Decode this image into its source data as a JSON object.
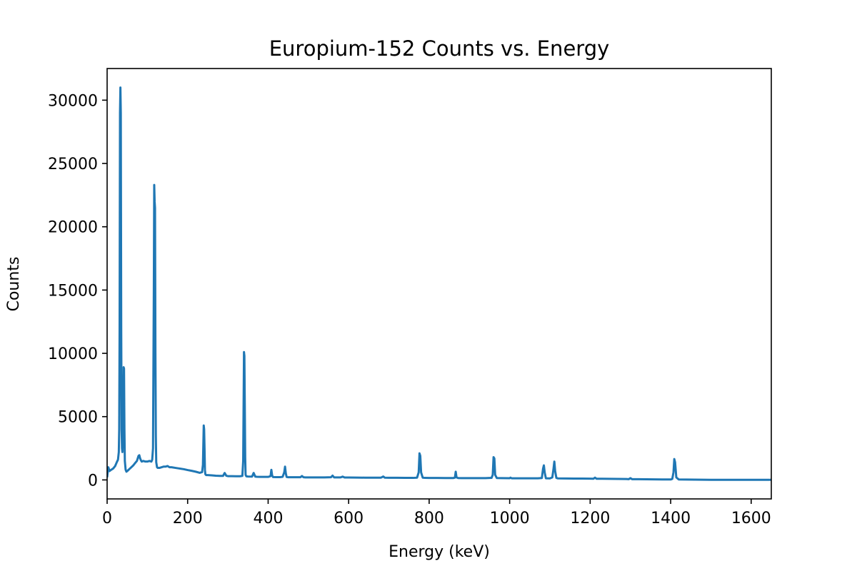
{
  "chart_data": {
    "type": "line",
    "title": "Europium-152 Counts vs. Energy",
    "xlabel": "Energy (keV)",
    "ylabel": "Counts",
    "xlim": [
      0,
      1650
    ],
    "ylim": [
      -1500,
      32500
    ],
    "x_ticks": [
      0,
      200,
      400,
      600,
      800,
      1000,
      1200,
      1400,
      1600
    ],
    "x_tick_labels": [
      "0",
      "200",
      "400",
      "600",
      "800",
      "1000",
      "1200",
      "1400",
      "1600"
    ],
    "y_ticks": [
      0,
      5000,
      10000,
      15000,
      20000,
      25000,
      30000
    ],
    "y_tick_labels": [
      "0",
      "5000",
      "10000",
      "15000",
      "20000",
      "25000",
      "30000"
    ],
    "grid": false,
    "legend": "none",
    "color": "#1f77b4",
    "series": [
      {
        "x": [
          0,
          3,
          6,
          10,
          15,
          20,
          24,
          27,
          29,
          30,
          31,
          32,
          33,
          34,
          35,
          36,
          37,
          38,
          40,
          41,
          42,
          43,
          44,
          46,
          48,
          50,
          55,
          60,
          65,
          70,
          74,
          76,
          78,
          80,
          82,
          84,
          86,
          90,
          95,
          100,
          105,
          110,
          112,
          114,
          116,
          117,
          118,
          119,
          120,
          121,
          122,
          124,
          126,
          130,
          135,
          140,
          145,
          150,
          155,
          160,
          170,
          180,
          190,
          200,
          210,
          220,
          230,
          236,
          238,
          240,
          241,
          242,
          243,
          244,
          246,
          250,
          260,
          270,
          280,
          288,
          292,
          296,
          300,
          310,
          320,
          330,
          336,
          338,
          340,
          341,
          342,
          343,
          344,
          346,
          350,
          360,
          364,
          368,
          372,
          380,
          390,
          400,
          406,
          408,
          410,
          412,
          420,
          430,
          436,
          440,
          442,
          444,
          446,
          450,
          460,
          470,
          480,
          484,
          488,
          492,
          500,
          520,
          540,
          556,
          560,
          564,
          570,
          580,
          585,
          590,
          600,
          620,
          640,
          660,
          680,
          686,
          690,
          700,
          720,
          740,
          760,
          770,
          774,
          776,
          778,
          780,
          784,
          790,
          800,
          820,
          840,
          860,
          864,
          866,
          868,
          872,
          880,
          900,
          920,
          940,
          955,
          958,
          960,
          962,
          964,
          968,
          980,
          1000,
          1002,
          1005,
          1010,
          1030,
          1050,
          1070,
          1080,
          1083,
          1085,
          1087,
          1090,
          1100,
          1106,
          1109,
          1111,
          1113,
          1116,
          1120,
          1140,
          1160,
          1180,
          1200,
          1208,
          1212,
          1216,
          1230,
          1250,
          1270,
          1290,
          1296,
          1300,
          1304,
          1320,
          1340,
          1360,
          1380,
          1400,
          1404,
          1407,
          1409,
          1411,
          1414,
          1420,
          1440,
          1460,
          1480,
          1500,
          1530,
          1560,
          1600,
          1650
        ],
        "y": [
          200,
          1000,
          700,
          800,
          900,
          1100,
          1400,
          1600,
          2200,
          4000,
          12000,
          29000,
          31000,
          29000,
          12000,
          4000,
          2500,
          2200,
          5000,
          8900,
          8800,
          4000,
          1500,
          800,
          650,
          700,
          850,
          1000,
          1150,
          1350,
          1500,
          1700,
          1900,
          1950,
          1700,
          1550,
          1450,
          1500,
          1450,
          1450,
          1500,
          1450,
          1600,
          2500,
          15000,
          23300,
          22000,
          21500,
          10000,
          3500,
          1400,
          1000,
          950,
          950,
          1000,
          1050,
          1050,
          1100,
          1000,
          1000,
          950,
          900,
          850,
          780,
          720,
          650,
          560,
          620,
          1200,
          4300,
          4000,
          2500,
          800,
          450,
          380,
          380,
          360,
          330,
          320,
          320,
          550,
          330,
          300,
          300,
          290,
          290,
          320,
          1500,
          10100,
          9800,
          6000,
          1800,
          400,
          280,
          270,
          260,
          550,
          260,
          250,
          240,
          240,
          240,
          300,
          800,
          350,
          230,
          220,
          220,
          250,
          600,
          1050,
          500,
          230,
          210,
          210,
          210,
          210,
          310,
          210,
          200,
          200,
          200,
          200,
          210,
          340,
          200,
          200,
          200,
          260,
          190,
          190,
          185,
          180,
          180,
          175,
          270,
          175,
          170,
          170,
          165,
          160,
          180,
          600,
          2100,
          1900,
          600,
          180,
          160,
          155,
          155,
          150,
          150,
          180,
          650,
          200,
          150,
          145,
          145,
          140,
          140,
          160,
          400,
          1800,
          1700,
          400,
          150,
          140,
          135,
          180,
          130,
          125,
          125,
          125,
          130,
          150,
          900,
          1150,
          600,
          130,
          120,
          200,
          900,
          1450,
          700,
          160,
          120,
          115,
          110,
          105,
          100,
          95,
          180,
          95,
          90,
          85,
          80,
          70,
          60,
          140,
          60,
          55,
          50,
          45,
          40,
          35,
          80,
          600,
          1650,
          1400,
          200,
          40,
          30,
          20,
          15,
          10,
          5,
          5,
          5,
          5
        ]
      }
    ]
  }
}
